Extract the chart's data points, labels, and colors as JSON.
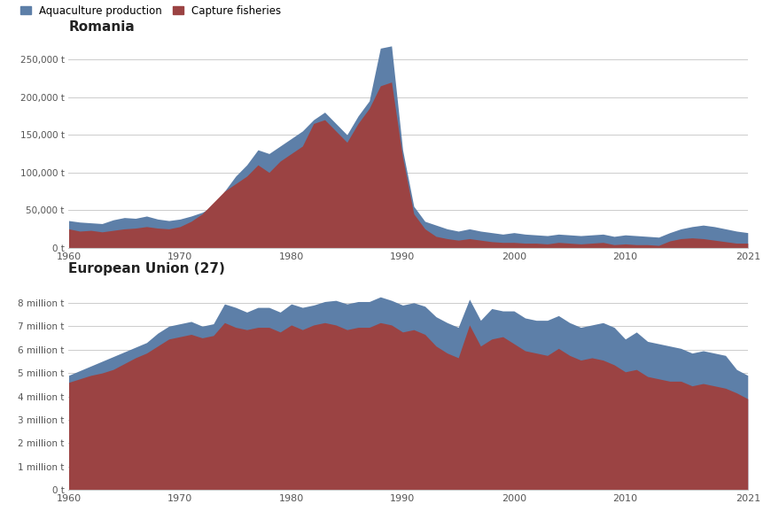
{
  "title1": "Romania",
  "title2": "European Union (27)",
  "legend_labels": [
    "Aquaculture production",
    "Capture fisheries"
  ],
  "aqua_color": "#5d7fa8",
  "capture_color": "#9b4343",
  "background_color": "#ffffff",
  "grid_color": "#cccccc",
  "years": [
    1960,
    1961,
    1962,
    1963,
    1964,
    1965,
    1966,
    1967,
    1968,
    1969,
    1970,
    1971,
    1972,
    1973,
    1974,
    1975,
    1976,
    1977,
    1978,
    1979,
    1980,
    1981,
    1982,
    1983,
    1984,
    1985,
    1986,
    1987,
    1988,
    1989,
    1990,
    1991,
    1992,
    1993,
    1994,
    1995,
    1996,
    1997,
    1998,
    1999,
    2000,
    2001,
    2002,
    2003,
    2004,
    2005,
    2006,
    2007,
    2008,
    2009,
    2010,
    2011,
    2012,
    2013,
    2014,
    2015,
    2016,
    2017,
    2018,
    2019,
    2020,
    2021
  ],
  "ro_aqua": [
    36000,
    34000,
    33000,
    32000,
    37000,
    40000,
    39000,
    42000,
    38000,
    36000,
    38000,
    42000,
    47000,
    55000,
    75000,
    95000,
    110000,
    130000,
    125000,
    135000,
    145000,
    155000,
    170000,
    180000,
    165000,
    150000,
    175000,
    195000,
    265000,
    268000,
    130000,
    55000,
    35000,
    30000,
    25000,
    22000,
    25000,
    22000,
    20000,
    18000,
    20000,
    18000,
    17000,
    16000,
    18000,
    17000,
    16000,
    17000,
    18000,
    15000,
    17000,
    16000,
    15000,
    14000,
    20000,
    25000,
    28000,
    30000,
    28000,
    25000,
    22000,
    20000
  ],
  "ro_capture": [
    25000,
    22000,
    23000,
    21000,
    23000,
    25000,
    26000,
    28000,
    26000,
    25000,
    28000,
    35000,
    45000,
    60000,
    75000,
    85000,
    95000,
    110000,
    100000,
    115000,
    125000,
    135000,
    165000,
    170000,
    155000,
    140000,
    165000,
    185000,
    215000,
    220000,
    120000,
    45000,
    25000,
    15000,
    12000,
    10000,
    12000,
    10000,
    8000,
    7000,
    7000,
    6000,
    6000,
    5000,
    7000,
    6000,
    5000,
    6000,
    7000,
    4000,
    5000,
    4000,
    4000,
    3000,
    9000,
    12000,
    13000,
    12000,
    10000,
    8000,
    6000,
    6000
  ],
  "eu_aqua": [
    4900000,
    5100000,
    5300000,
    5500000,
    5700000,
    5900000,
    6100000,
    6300000,
    6700000,
    7000000,
    7100000,
    7200000,
    7000000,
    7100000,
    7950000,
    7800000,
    7600000,
    7800000,
    7800000,
    7600000,
    7950000,
    7800000,
    7900000,
    8050000,
    8100000,
    7950000,
    8050000,
    8050000,
    8250000,
    8100000,
    7900000,
    8000000,
    7850000,
    7400000,
    7150000,
    6950000,
    8150000,
    7250000,
    7750000,
    7650000,
    7650000,
    7350000,
    7250000,
    7250000,
    7450000,
    7150000,
    6950000,
    7050000,
    7150000,
    6950000,
    6450000,
    6750000,
    6350000,
    6250000,
    6150000,
    6050000,
    5850000,
    5950000,
    5850000,
    5750000,
    5150000,
    4900000
  ],
  "eu_capture": [
    4600000,
    4750000,
    4900000,
    5000000,
    5150000,
    5400000,
    5650000,
    5850000,
    6150000,
    6450000,
    6550000,
    6650000,
    6500000,
    6600000,
    7150000,
    6950000,
    6850000,
    6950000,
    6950000,
    6750000,
    7050000,
    6850000,
    7050000,
    7150000,
    7050000,
    6850000,
    6950000,
    6950000,
    7150000,
    7050000,
    6750000,
    6850000,
    6650000,
    6150000,
    5850000,
    5650000,
    7050000,
    6150000,
    6450000,
    6550000,
    6250000,
    5950000,
    5850000,
    5750000,
    6050000,
    5750000,
    5550000,
    5650000,
    5550000,
    5350000,
    5050000,
    5150000,
    4850000,
    4750000,
    4650000,
    4650000,
    4450000,
    4550000,
    4450000,
    4350000,
    4150000,
    3900000
  ]
}
